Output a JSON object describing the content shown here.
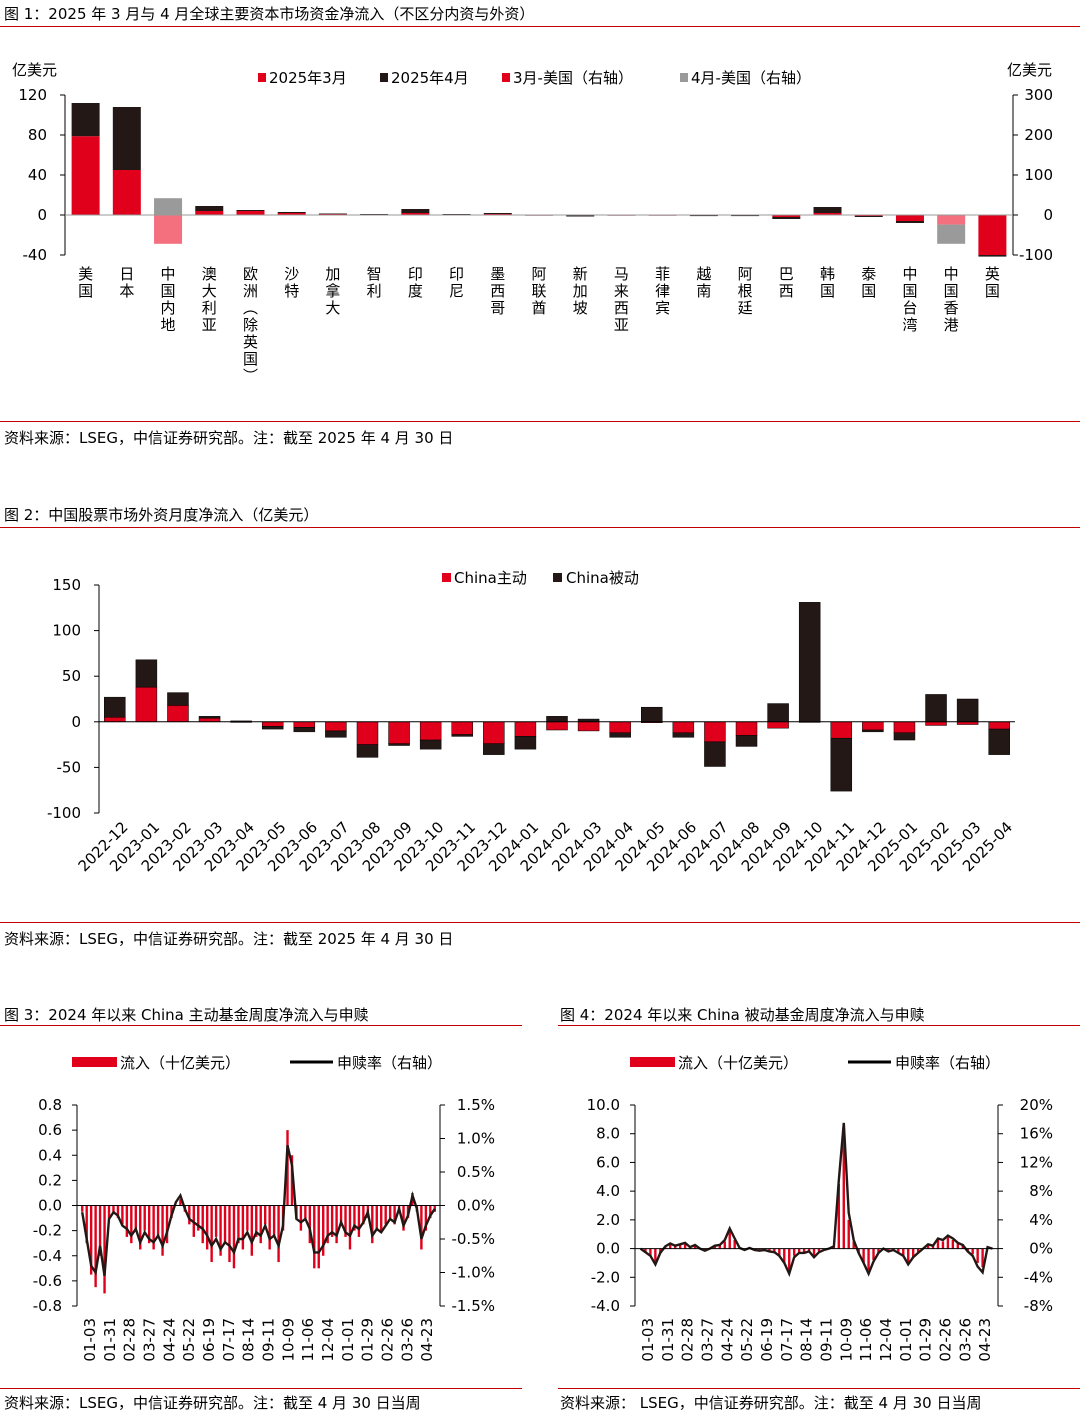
{
  "colors": {
    "red": "#e0001b",
    "black": "#231815",
    "pink": "#f4707f",
    "gray": "#9a9a9a"
  },
  "fig1": {
    "title": "图 1：2025 年 3 月与 4 月全球主要资本市场资金净流入（不区分内资与外资）",
    "source": "资料来源：LSEG，中信证券研究部。注：截至 2025 年 4 月 30 日",
    "left_unit": "亿美元",
    "right_unit": "亿美元",
    "legend": [
      "2025年3月",
      "2025年4月",
      "3月-美国（右轴）",
      "4月-美国（右轴）"
    ]
  },
  "fig2": {
    "title": "图 2：中国股票市场外资月度净流入（亿美元）",
    "source": "资料来源：LSEG，中信证券研究部。注：截至 2025 年 4 月 30 日",
    "legend": [
      "China主动",
      "China被动"
    ]
  },
  "fig3": {
    "title": "图 3：2024 年以来 China 主动基金周度净流入与申赎",
    "source": "资料来源：LSEG，中信证券研究部。注：截至 4 月 30 日当周",
    "legend": [
      "流入（十亿美元）",
      "申赎率（右轴）"
    ]
  },
  "fig4": {
    "title": "图 4：2024 年以来 China 被动基金周度净流入与申赎",
    "source": "资料来源：  LSEG，中信证券研究部。注：截至 4 月 30 日当周",
    "legend": [
      "流入（十亿美元）",
      "申赎率（右轴）"
    ]
  },
  "chart_data": [
    {
      "type": "bar",
      "stacked": true,
      "categories": [
        "美国",
        "日本",
        "中国内地",
        "澳大利亚",
        "欧洲（除英国）",
        "沙特",
        "加拿大",
        "智利",
        "印度",
        "印尼",
        "墨西哥",
        "阿联酋",
        "新加坡",
        "马来西亚",
        "菲律宾",
        "越南",
        "阿根廷",
        "巴西",
        "韩国",
        "泰国",
        "中国台湾",
        "中国香港",
        "英国"
      ],
      "ylabel": "亿美元",
      "y2label": "亿美元",
      "ylim": [
        -40,
        120
      ],
      "yticks": [
        -40,
        0,
        40,
        80,
        120
      ],
      "y2lim": [
        -100,
        300
      ],
      "y2ticks": [
        -100,
        0,
        100,
        200,
        300
      ],
      "right_axis_categories": [
        "美国",
        "中国内地",
        "中国香港",
        "英国"
      ],
      "series": [
        {
          "name": "2025年3月",
          "values": [
            null,
            45,
            null,
            4,
            4,
            2,
            1,
            0.5,
            2,
            0.5,
            1,
            0,
            -0.5,
            0,
            0,
            -0.5,
            -0.5,
            -2,
            2,
            -1,
            -6,
            null,
            null
          ]
        },
        {
          "name": "2025年4月",
          "values": [
            null,
            63,
            null,
            5,
            1,
            1,
            0.5,
            0.5,
            4,
            0.5,
            1,
            0,
            -1,
            -0.3,
            0,
            -0.5,
            -0.5,
            -2,
            6,
            -1,
            -2,
            null,
            null
          ]
        },
        {
          "name": "3月-美国（右轴）",
          "values": [
            197,
            null,
            -72,
            null,
            null,
            null,
            null,
            null,
            null,
            null,
            null,
            null,
            null,
            null,
            null,
            null,
            null,
            null,
            null,
            null,
            null,
            -24,
            -100
          ]
        },
        {
          "name": "4月-美国（右轴）",
          "values": [
            83,
            null,
            42,
            null,
            null,
            null,
            null,
            null,
            null,
            null,
            null,
            null,
            null,
            null,
            null,
            null,
            null,
            null,
            null,
            null,
            null,
            -48,
            -4
          ]
        }
      ]
    },
    {
      "type": "bar",
      "stacked": true,
      "categories": [
        "2022-12",
        "2023-01",
        "2023-02",
        "2023-03",
        "2023-04",
        "2023-05",
        "2023-06",
        "2023-07",
        "2023-08",
        "2023-09",
        "2023-10",
        "2023-11",
        "2023-12",
        "2024-01",
        "2024-02",
        "2024-03",
        "2024-04",
        "2024-05",
        "2024-06",
        "2024-07",
        "2024-08",
        "2024-09",
        "2024-10",
        "2024-11",
        "2024-12",
        "2025-01",
        "2025-02",
        "2025-03",
        "2025-04"
      ],
      "ylim": [
        -100,
        150
      ],
      "yticks": [
        -100,
        -50,
        0,
        50,
        100,
        150
      ],
      "series": [
        {
          "name": "China主动",
          "values": [
            5,
            38,
            18,
            4,
            0,
            -5,
            -6,
            -10,
            -25,
            -24,
            -20,
            -14,
            -24,
            -16,
            -9,
            -10,
            -12,
            -1,
            -12,
            -22,
            -15,
            -7,
            0,
            -18,
            -9,
            -12,
            -4,
            -3,
            -8
          ]
        },
        {
          "name": "China被动",
          "values": [
            22,
            30,
            14,
            2,
            1,
            -3,
            -5,
            -7,
            -14,
            -2,
            -10,
            -2,
            -12,
            -14,
            6,
            3,
            -5,
            16,
            -5,
            -27,
            -12,
            20,
            131,
            -58,
            -2,
            -8,
            30,
            25,
            -28
          ]
        }
      ]
    },
    {
      "type": "bar+line",
      "x_ticks": [
        "01-03",
        "01-31",
        "02-28",
        "03-27",
        "04-24",
        "05-22",
        "06-19",
        "07-17",
        "08-14",
        "09-11",
        "10-09",
        "11-06",
        "12-04",
        "01-01",
        "01-29",
        "02-26",
        "03-26",
        "04-23"
      ],
      "ylim": [
        -0.8,
        0.8
      ],
      "yticks": [
        -0.8,
        -0.6,
        -0.4,
        -0.2,
        0.0,
        0.2,
        0.4,
        0.6,
        0.8
      ],
      "y2lim": [
        -1.5,
        1.5
      ],
      "y2ticks": [
        "-1.5%",
        "-1.0%",
        "-0.5%",
        "0.0%",
        "0.5%",
        "1.0%",
        "1.5%"
      ],
      "series": [
        {
          "name": "流入（十亿美元）",
          "values": [
            -0.05,
            -0.3,
            -0.55,
            -0.65,
            -0.4,
            -0.7,
            -0.1,
            -0.05,
            -0.1,
            -0.15,
            -0.25,
            -0.3,
            -0.2,
            -0.35,
            -0.2,
            -0.3,
            -0.35,
            -0.25,
            -0.4,
            -0.3,
            -0.1,
            0.0,
            0.05,
            -0.05,
            -0.15,
            -0.25,
            -0.2,
            -0.3,
            -0.35,
            -0.45,
            -0.25,
            -0.4,
            -0.3,
            -0.45,
            -0.5,
            -0.3,
            -0.35,
            -0.2,
            -0.4,
            -0.25,
            -0.3,
            -0.15,
            -0.35,
            -0.25,
            -0.45,
            -0.2,
            0.6,
            0.4,
            -0.1,
            -0.2,
            -0.1,
            -0.3,
            -0.5,
            -0.5,
            -0.4,
            -0.3,
            -0.25,
            -0.3,
            -0.15,
            -0.25,
            -0.35,
            -0.2,
            -0.25,
            -0.15,
            -0.1,
            -0.3,
            -0.2,
            -0.2,
            -0.15,
            -0.1,
            -0.15,
            -0.05,
            -0.2,
            -0.1,
            0.1,
            -0.05,
            -0.35,
            -0.2,
            -0.1,
            -0.05
          ]
        },
        {
          "name": "申赎率（右轴）",
          "values": [
            -0.1,
            -0.5,
            -0.9,
            -1.0,
            -0.6,
            -1.05,
            -0.2,
            -0.1,
            -0.15,
            -0.3,
            -0.35,
            -0.45,
            -0.35,
            -0.55,
            -0.4,
            -0.5,
            -0.55,
            -0.45,
            -0.6,
            -0.4,
            -0.15,
            0.05,
            0.15,
            -0.05,
            -0.2,
            -0.25,
            -0.3,
            -0.35,
            -0.45,
            -0.6,
            -0.5,
            -0.65,
            -0.55,
            -0.6,
            -0.7,
            -0.5,
            -0.5,
            -0.4,
            -0.55,
            -0.4,
            -0.45,
            -0.3,
            -0.5,
            -0.45,
            -0.6,
            -0.3,
            0.9,
            0.6,
            -0.2,
            -0.25,
            -0.2,
            -0.35,
            -0.7,
            -0.7,
            -0.6,
            -0.45,
            -0.4,
            -0.45,
            -0.25,
            -0.4,
            -0.45,
            -0.3,
            -0.35,
            -0.25,
            -0.1,
            -0.45,
            -0.35,
            -0.4,
            -0.3,
            -0.2,
            -0.25,
            -0.05,
            -0.3,
            -0.15,
            0.15,
            -0.05,
            -0.5,
            -0.3,
            -0.15,
            -0.05
          ]
        }
      ]
    },
    {
      "type": "bar+line",
      "x_ticks": [
        "01-03",
        "01-31",
        "02-28",
        "03-27",
        "04-24",
        "05-22",
        "06-19",
        "07-17",
        "08-14",
        "09-11",
        "10-09",
        "11-06",
        "12-04",
        "01-01",
        "01-29",
        "02-26",
        "03-26",
        "04-23"
      ],
      "ylim": [
        -4.0,
        10.0
      ],
      "yticks": [
        -4.0,
        -2.0,
        0.0,
        2.0,
        4.0,
        6.0,
        8.0,
        10.0
      ],
      "y2lim": [
        -8,
        20
      ],
      "y2ticks": [
        "-8%",
        "-4%",
        "0%",
        "4%",
        "8%",
        "12%",
        "16%",
        "20%"
      ],
      "series": [
        {
          "name": "流入（十亿美元）",
          "values": [
            0.0,
            -0.3,
            -0.5,
            -1.0,
            -0.3,
            0.1,
            0.3,
            0.2,
            0.3,
            0.4,
            0.1,
            0.2,
            0.0,
            -0.2,
            0.0,
            0.2,
            0.3,
            0.5,
            1.2,
            0.6,
            0.0,
            -0.1,
            0.1,
            -0.1,
            -0.2,
            -0.1,
            -0.2,
            -0.3,
            -0.5,
            -1.0,
            -1.5,
            -0.5,
            -0.3,
            -0.3,
            -0.2,
            -0.6,
            -0.2,
            -0.1,
            0.0,
            0.1,
            4.5,
            7.5,
            2.0,
            0.5,
            -0.3,
            -1.0,
            -1.5,
            -0.8,
            -0.3,
            0.0,
            -0.2,
            -0.1,
            -0.3,
            -0.5,
            -1.0,
            -0.6,
            -0.3,
            0.0,
            0.3,
            0.2,
            0.6,
            0.5,
            0.8,
            0.6,
            0.4,
            0.3,
            -0.2,
            -0.4,
            -1.0,
            -1.3,
            0.1,
            0.0
          ]
        },
        {
          "name": "申赎率（右轴）",
          "values": [
            0.0,
            -0.5,
            -1.0,
            -2.2,
            -0.6,
            0.3,
            0.7,
            0.4,
            0.6,
            0.8,
            0.2,
            0.5,
            0.0,
            -0.3,
            0.0,
            0.4,
            0.5,
            1.2,
            2.8,
            1.4,
            0.1,
            -0.2,
            0.1,
            -0.2,
            -0.3,
            -0.2,
            -0.4,
            -0.5,
            -1.0,
            -2.0,
            -3.5,
            -1.2,
            -0.6,
            -0.6,
            -0.4,
            -1.2,
            -0.5,
            -0.2,
            0.0,
            0.3,
            9.5,
            17.5,
            5.0,
            1.2,
            -0.6,
            -2.0,
            -3.5,
            -1.8,
            -0.6,
            0.0,
            -0.4,
            -0.2,
            -0.6,
            -1.0,
            -2.2,
            -1.2,
            -0.6,
            0.0,
            0.6,
            0.4,
            1.4,
            1.2,
            1.8,
            1.4,
            0.8,
            0.5,
            -0.4,
            -1.0,
            -2.5,
            -3.3,
            0.2,
            0.0
          ]
        }
      ]
    }
  ]
}
